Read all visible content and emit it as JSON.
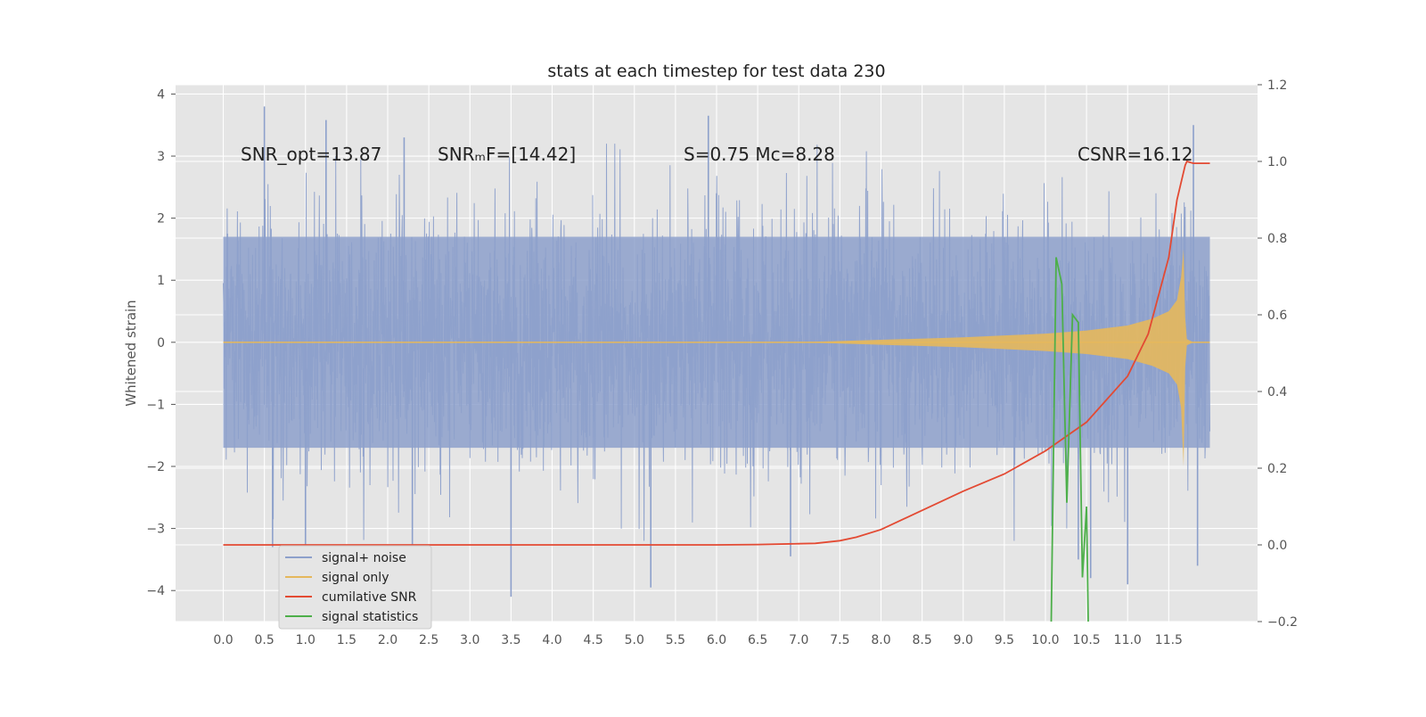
{
  "chart_data": {
    "type": "line",
    "title": "stats at each timestep for test data 230",
    "xlabel": "",
    "ylabel": "Whitened strain",
    "y2label": "",
    "xlim": [
      -0.58,
      12.58
    ],
    "ylim": [
      -4.5,
      4.15
    ],
    "y2lim": [
      -0.2,
      1.2
    ],
    "grid": true,
    "x_ticks": [
      "0.0",
      "0.5",
      "1.0",
      "1.5",
      "2.0",
      "2.5",
      "3.0",
      "3.5",
      "4.0",
      "4.5",
      "5.0",
      "5.5",
      "6.0",
      "6.5",
      "7.0",
      "7.5",
      "8.0",
      "8.5",
      "9.0",
      "9.5",
      "10.0",
      "10.5",
      "11.0",
      "11.5"
    ],
    "y_ticks": [
      4,
      3,
      2,
      1,
      0,
      -1,
      -2,
      -3,
      -4
    ],
    "y_tick_labels": [
      "4",
      "3",
      "2",
      "1",
      "0",
      "−1",
      "−2",
      "−3",
      "−4"
    ],
    "y2_ticks": [
      1.2,
      1.0,
      0.8,
      0.6,
      0.4,
      0.2,
      0.0,
      -0.2
    ],
    "y2_tick_labels": [
      "1.2",
      "1.0",
      "0.8",
      "0.6",
      "0.4",
      "0.2",
      "0.0",
      "−0.2"
    ],
    "annotations": [
      {
        "text": "SNR_opt=13.87",
        "x": 0.2,
        "y": 2.95
      },
      {
        "text": "SNRₘF=[14.42]",
        "x": 2.6,
        "y": 2.95
      },
      {
        "text": "S=0.75   Mᴄ=8.28",
        "x": 5.6,
        "y": 2.95
      },
      {
        "text": "CSNR=16.12",
        "x": 10.4,
        "y": 2.95
      }
    ],
    "legend": {
      "location": "lower-left",
      "entries": [
        "signal+ noise",
        "signal only",
        "cumilative SNR",
        "signal statistics"
      ]
    },
    "series": [
      {
        "name": "signal+ noise",
        "axis": "left",
        "color": "#8da0cb",
        "description": "whitened noisy strain, approx. Gaussian noise with amplitude ~1.7 over t = 0 to 12",
        "x_range": [
          0.0,
          12.0
        ],
        "spikes": [
          {
            "x": 0.05,
            "y": 1.75
          },
          {
            "x": 0.5,
            "y": 3.8
          },
          {
            "x": 0.6,
            "y": -3.3
          },
          {
            "x": 1.0,
            "y": -3.3
          },
          {
            "x": 1.25,
            "y": 3.58
          },
          {
            "x": 2.2,
            "y": 3.3
          },
          {
            "x": 2.3,
            "y": -3.6
          },
          {
            "x": 3.5,
            "y": -4.1
          },
          {
            "x": 5.2,
            "y": -3.95
          },
          {
            "x": 5.9,
            "y": 3.65
          },
          {
            "x": 6.0,
            "y": 2.4
          },
          {
            "x": 6.9,
            "y": -3.45
          },
          {
            "x": 10.4,
            "y": -3.5
          },
          {
            "x": 10.55,
            "y": -3.8
          },
          {
            "x": 11.0,
            "y": -3.9
          },
          {
            "x": 11.8,
            "y": 3.5
          },
          {
            "x": 11.85,
            "y": -3.6
          }
        ]
      },
      {
        "name": "signal only",
        "axis": "left",
        "color": "#e5b85c",
        "description": "chirp envelope growing towards merger",
        "envelope": [
          [
            7.0,
            0.0
          ],
          [
            8.0,
            0.04
          ],
          [
            9.0,
            0.08
          ],
          [
            10.0,
            0.14
          ],
          [
            10.5,
            0.19
          ],
          [
            11.0,
            0.27
          ],
          [
            11.3,
            0.38
          ],
          [
            11.5,
            0.5
          ],
          [
            11.6,
            0.68
          ],
          [
            11.65,
            1.05
          ],
          [
            11.68,
            1.5
          ],
          [
            11.7,
            0.4
          ],
          [
            11.72,
            0.05
          ],
          [
            11.8,
            0.0
          ]
        ],
        "lower_dip": [
          11.68,
          -2.0
        ]
      },
      {
        "name": "cumilative SNR",
        "axis": "right",
        "color": "#e34a33",
        "x": [
          0.0,
          1.0,
          2.0,
          3.0,
          4.0,
          5.0,
          6.0,
          6.5,
          7.0,
          7.2,
          7.5,
          7.7,
          8.0,
          8.5,
          9.0,
          9.5,
          10.0,
          10.5,
          11.0,
          11.25,
          11.5,
          11.6,
          11.7,
          11.72,
          11.8,
          12.0
        ],
        "values": [
          0.0,
          0.0,
          0.0,
          0.0,
          0.0,
          0.0,
          0.0,
          0.001,
          0.003,
          0.004,
          0.011,
          0.02,
          0.04,
          0.09,
          0.14,
          0.185,
          0.245,
          0.32,
          0.44,
          0.55,
          0.75,
          0.9,
          0.99,
          1.0,
          0.995,
          0.995
        ]
      },
      {
        "name": "signal statistics",
        "axis": "right",
        "color": "#4daf4a",
        "x": [
          10.07,
          10.13,
          10.2,
          10.26,
          10.33,
          10.4,
          10.45,
          10.5,
          10.52
        ],
        "values": [
          -0.2,
          0.75,
          0.68,
          0.11,
          0.6,
          0.58,
          -0.085,
          0.1,
          -0.2
        ]
      }
    ]
  }
}
